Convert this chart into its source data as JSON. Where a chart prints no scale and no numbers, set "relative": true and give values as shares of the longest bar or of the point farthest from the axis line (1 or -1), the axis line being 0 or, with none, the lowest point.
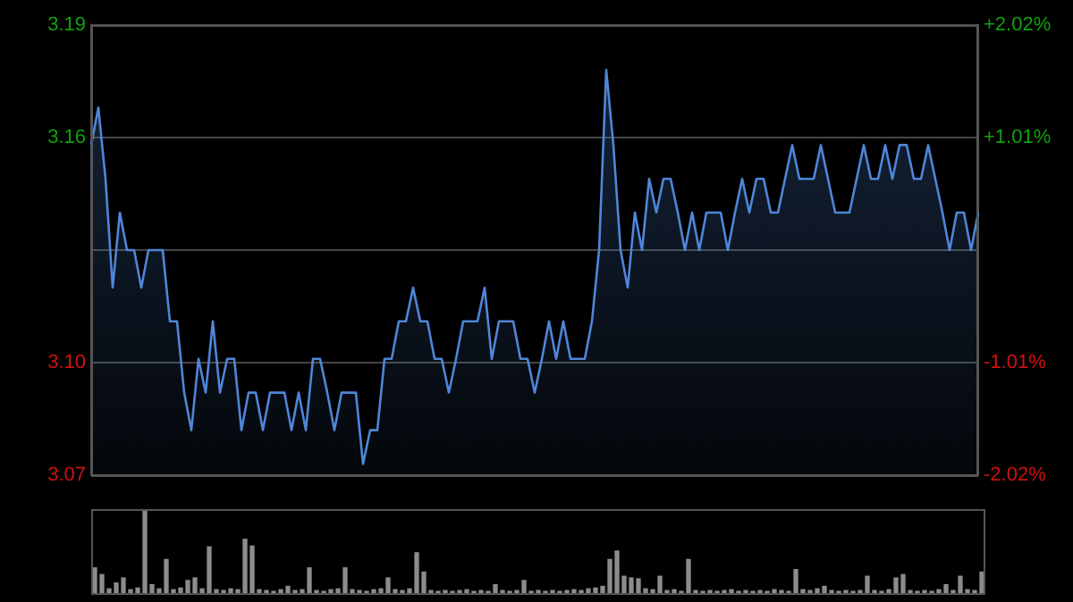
{
  "chart_data": [
    {
      "type": "area",
      "categories": [
        null,
        null,
        null,
        null,
        null,
        null,
        null,
        null,
        null,
        null,
        null,
        null,
        null,
        null,
        null,
        null,
        null,
        null,
        null,
        null,
        null,
        null,
        null,
        null,
        null,
        null,
        null,
        null,
        null,
        null,
        null,
        null,
        null,
        null,
        null,
        null,
        null,
        null,
        null,
        null,
        null,
        null,
        null,
        null,
        null,
        null,
        null,
        null,
        null,
        null,
        null,
        null,
        null,
        null,
        null,
        null,
        null,
        null,
        null,
        null,
        null,
        null,
        null,
        null,
        null,
        null,
        null,
        null,
        null,
        null,
        null,
        null,
        null,
        null,
        null,
        null,
        null,
        null,
        null,
        null,
        null,
        null,
        null,
        null,
        null,
        null,
        null,
        null,
        null,
        null,
        null,
        null,
        null,
        null,
        null,
        null,
        null,
        null,
        null,
        null,
        null,
        null,
        null,
        null,
        null,
        null,
        null,
        null,
        null,
        null,
        null,
        null,
        null,
        null,
        null,
        null,
        null,
        null,
        null,
        null,
        null,
        null,
        null,
        null,
        null
      ],
      "series": [
        {
          "color": "#4f86d8",
          "values": [
            3.158,
            3.168,
            3.149,
            3.12,
            3.14,
            3.13,
            3.13,
            3.12,
            3.13,
            3.13,
            3.13,
            3.111,
            3.111,
            3.092,
            3.082,
            3.101,
            3.092,
            3.111,
            3.092,
            3.101,
            3.101,
            3.082,
            3.092,
            3.092,
            3.082,
            3.092,
            3.092,
            3.092,
            3.082,
            3.092,
            3.082,
            3.101,
            3.101,
            3.092,
            3.082,
            3.092,
            3.092,
            3.092,
            3.073,
            3.082,
            3.082,
            3.101,
            3.101,
            3.111,
            3.111,
            3.12,
            3.111,
            3.111,
            3.101,
            3.101,
            3.092,
            3.101,
            3.111,
            3.111,
            3.111,
            3.12,
            3.101,
            3.111,
            3.111,
            3.111,
            3.101,
            3.101,
            3.092,
            3.101,
            3.111,
            3.101,
            3.111,
            3.101,
            3.101,
            3.101,
            3.111,
            3.13,
            3.178,
            3.158,
            3.13,
            3.12,
            3.14,
            3.13,
            3.149,
            3.14,
            3.149,
            3.149,
            3.14,
            3.13,
            3.14,
            3.13,
            3.14,
            3.14,
            3.14,
            3.13,
            3.14,
            3.149,
            3.14,
            3.149,
            3.149,
            3.14,
            3.14,
            3.149,
            3.158,
            3.149,
            3.149,
            3.149,
            3.158,
            3.149,
            3.14,
            3.14,
            3.14,
            3.149,
            3.158,
            3.149,
            3.149,
            3.158,
            3.149,
            3.158,
            3.158,
            3.149,
            3.149,
            3.158,
            3.149,
            3.14,
            3.13,
            3.14,
            3.14,
            3.13,
            3.14
          ]
        }
      ],
      "ylim": [
        3.07,
        3.19
      ],
      "yticks": [
        {
          "value": 3.07,
          "label": "3.07"
        },
        {
          "value": 3.1,
          "label": "3.10"
        },
        {
          "value": 3.13,
          "label": null
        },
        {
          "value": 3.16,
          "label": "3.16"
        },
        {
          "value": 3.19,
          "label": "3.19"
        }
      ],
      "y2lim": [
        -2.02,
        2.02
      ],
      "y2ticks": [
        {
          "value": -2.02,
          "label": "-2.02%"
        },
        {
          "value": -1.01,
          "label": "-1.01%"
        },
        {
          "value": 0,
          "label": null
        },
        {
          "value": 1.01,
          "label": "+1.01%"
        },
        {
          "value": 2.02,
          "label": "+2.02%"
        }
      ],
      "grid": "y",
      "tick_labels": "y"
    },
    {
      "type": "bar",
      "relative": true,
      "tick_labels": false,
      "categories": [
        null,
        null,
        null,
        null,
        null,
        null,
        null,
        null,
        null,
        null,
        null,
        null,
        null,
        null,
        null,
        null,
        null,
        null,
        null,
        null,
        null,
        null,
        null,
        null,
        null,
        null,
        null,
        null,
        null,
        null,
        null,
        null,
        null,
        null,
        null,
        null,
        null,
        null,
        null,
        null,
        null,
        null,
        null,
        null,
        null,
        null,
        null,
        null,
        null,
        null,
        null,
        null,
        null,
        null,
        null,
        null,
        null,
        null,
        null,
        null,
        null,
        null,
        null,
        null,
        null,
        null,
        null,
        null,
        null,
        null,
        null,
        null,
        null,
        null,
        null,
        null,
        null,
        null,
        null,
        null,
        null,
        null,
        null,
        null,
        null,
        null,
        null,
        null,
        null,
        null,
        null,
        null,
        null,
        null,
        null,
        null,
        null,
        null,
        null,
        null,
        null,
        null,
        null,
        null,
        null,
        null,
        null,
        null,
        null,
        null,
        null,
        null,
        null,
        null,
        null,
        null,
        null,
        null,
        null,
        null,
        null,
        null,
        null,
        null,
        null
      ],
      "series": [
        {
          "color": "#8c8c8c",
          "values": [
            0.3,
            0.22,
            0.05,
            0.12,
            0.18,
            0.04,
            0.06,
            1,
            0.1,
            0.05,
            0.4,
            0.04,
            0.06,
            0.15,
            0.18,
            0.05,
            0.55,
            0.04,
            0.03,
            0.05,
            0.04,
            0.64,
            0.56,
            0.04,
            0.03,
            0.02,
            0.04,
            0.08,
            0.03,
            0.04,
            0.3,
            0.03,
            0.02,
            0.04,
            0.05,
            0.3,
            0.04,
            0.03,
            0.02,
            0.04,
            0.05,
            0.18,
            0.04,
            0.03,
            0.05,
            0.48,
            0.25,
            0.03,
            0.02,
            0.03,
            0.02,
            0.03,
            0.04,
            0.02,
            0.03,
            0.02,
            0.1,
            0.03,
            0.02,
            0.03,
            0.15,
            0.02,
            0.03,
            0.02,
            0.03,
            0.02,
            0.03,
            0.04,
            0.03,
            0.05,
            0.06,
            0.08,
            0.4,
            0.5,
            0.2,
            0.18,
            0.17,
            0.05,
            0.04,
            0.2,
            0.03,
            0.04,
            0.02,
            0.4,
            0.03,
            0.02,
            0.03,
            0.02,
            0.03,
            0.04,
            0.02,
            0.03,
            0.02,
            0.03,
            0.02,
            0.04,
            0.03,
            0.02,
            0.28,
            0.04,
            0.03,
            0.05,
            0.08,
            0.03,
            0.02,
            0.03,
            0.02,
            0.03,
            0.2,
            0.03,
            0.02,
            0.04,
            0.18,
            0.22,
            0.03,
            0.02,
            0.03,
            0.02,
            0.04,
            0.1,
            0.03,
            0.2,
            0.04,
            0.03,
            0.25
          ]
        }
      ]
    }
  ]
}
